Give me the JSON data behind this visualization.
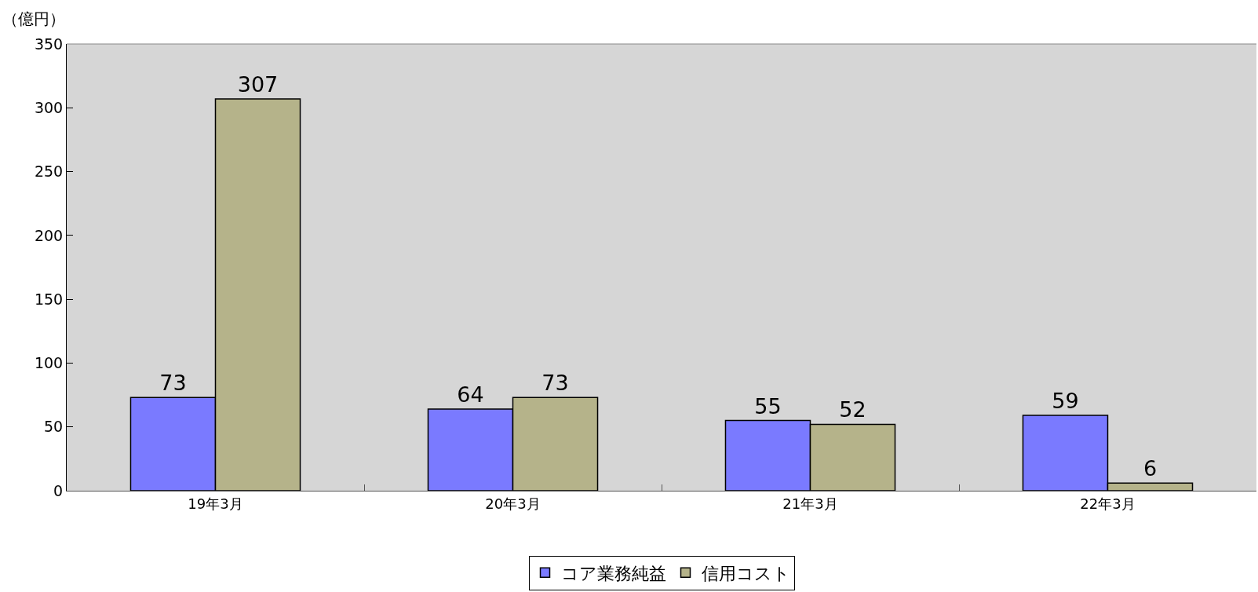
{
  "chart_data": {
    "type": "bar",
    "ylabel": "（億円）",
    "categories": [
      "19年3月",
      "20年3月",
      "21年3月",
      "22年3月"
    ],
    "series": [
      {
        "name": "コア業務純益",
        "color": "#7a7aff",
        "values": [
          73,
          64,
          55,
          59
        ]
      },
      {
        "name": "信用コスト",
        "color": "#b5b38a",
        "values": [
          307,
          73,
          52,
          6
        ]
      }
    ],
    "ylim": [
      0,
      350
    ],
    "yticks": [
      0,
      50,
      100,
      150,
      200,
      250,
      300,
      350
    ],
    "data_labels": true,
    "grid": false,
    "legend": "bottom"
  }
}
